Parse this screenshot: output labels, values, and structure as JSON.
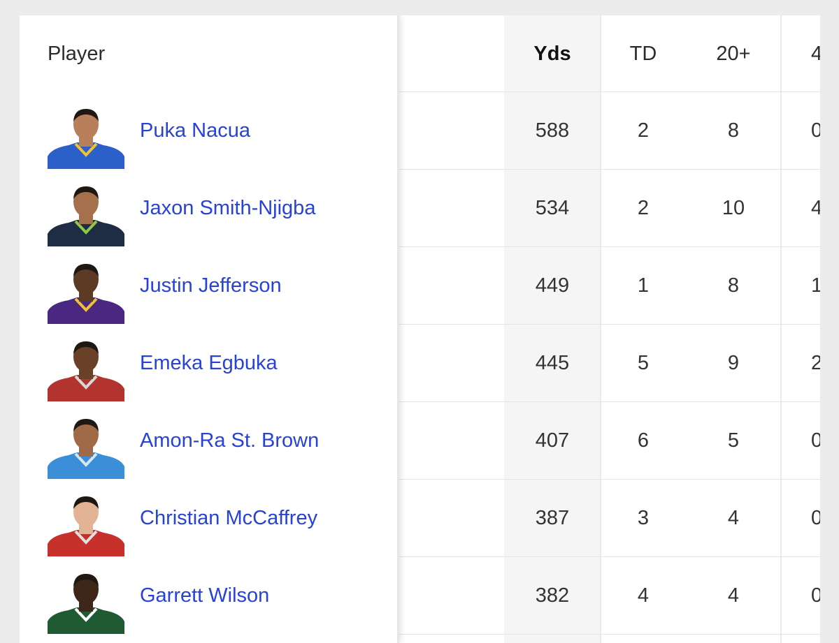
{
  "table": {
    "headers": {
      "player": "Player",
      "yds": "Yds",
      "td": "TD",
      "twenty_plus": "20+",
      "forty_plus_partial": "4"
    },
    "rows": [
      {
        "name": "Puka Nacua",
        "yds": "588",
        "td": "2",
        "twenty_plus": "8",
        "next": "0",
        "jersey": "#2b5fc9",
        "trim": "#f2c230",
        "skin": "#b8805a"
      },
      {
        "name": "Jaxon Smith-Njigba",
        "yds": "534",
        "td": "2",
        "twenty_plus": "10",
        "next": "4",
        "jersey": "#1f2d44",
        "trim": "#8fc94a",
        "skin": "#a5704c"
      },
      {
        "name": "Justin Jefferson",
        "yds": "449",
        "td": "1",
        "twenty_plus": "8",
        "next": "1",
        "jersey": "#4a2780",
        "trim": "#f2c230",
        "skin": "#5c3a24"
      },
      {
        "name": "Emeka Egbuka",
        "yds": "445",
        "td": "5",
        "twenty_plus": "9",
        "next": "2",
        "jersey": "#b3332f",
        "trim": "#d8d8d8",
        "skin": "#6a4128"
      },
      {
        "name": "Amon-Ra St. Brown",
        "yds": "407",
        "td": "6",
        "twenty_plus": "5",
        "next": "0",
        "jersey": "#3a8fd8",
        "trim": "#d9e4ee",
        "skin": "#a06a46"
      },
      {
        "name": "Christian McCaffrey",
        "yds": "387",
        "td": "3",
        "twenty_plus": "4",
        "next": "0",
        "jersey": "#c8302c",
        "trim": "#e0e0e0",
        "skin": "#e2b394"
      },
      {
        "name": "Garrett Wilson",
        "yds": "382",
        "td": "4",
        "twenty_plus": "4",
        "next": "0",
        "jersey": "#1f5a32",
        "trim": "#ffffff",
        "skin": "#3e2618"
      }
    ]
  }
}
